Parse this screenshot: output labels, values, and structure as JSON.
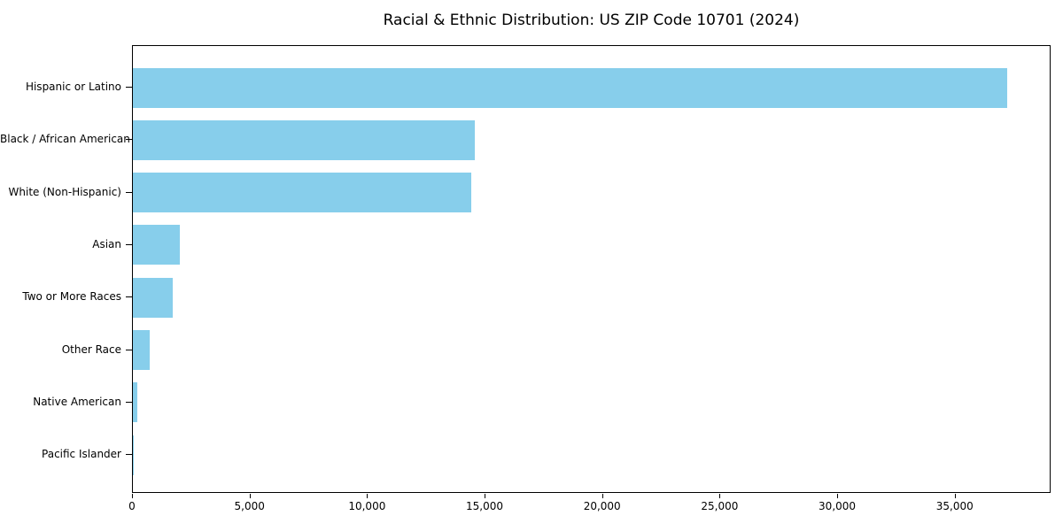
{
  "figure": {
    "background": "#ffffff"
  },
  "chart_data": {
    "type": "bar",
    "orientation": "horizontal",
    "title": "Racial & Ethnic Distribution: US ZIP Code 10701 (2024)",
    "categories": [
      "Hispanic or Latino",
      "Black / African American",
      "White (Non-Hispanic)",
      "Asian",
      "Two or More Races",
      "Other Race",
      "Native American",
      "Pacific Islander"
    ],
    "values": [
      37200,
      14550,
      14400,
      2000,
      1700,
      720,
      180,
      20
    ],
    "xlabel": "",
    "ylabel": "",
    "xlim": [
      0,
      39080
    ],
    "xticks": [
      {
        "value": 0,
        "label": "0"
      },
      {
        "value": 5000,
        "label": "5,000"
      },
      {
        "value": 10000,
        "label": "10,000"
      },
      {
        "value": 15000,
        "label": "15,000"
      },
      {
        "value": 20000,
        "label": "20,000"
      },
      {
        "value": 25000,
        "label": "25,000"
      },
      {
        "value": 30000,
        "label": "30,000"
      },
      {
        "value": 35000,
        "label": "35,000"
      }
    ],
    "grid": false,
    "legend": null,
    "bar_color": "#87CEEB",
    "frame_color": "#000000",
    "text_color": "#000000"
  }
}
